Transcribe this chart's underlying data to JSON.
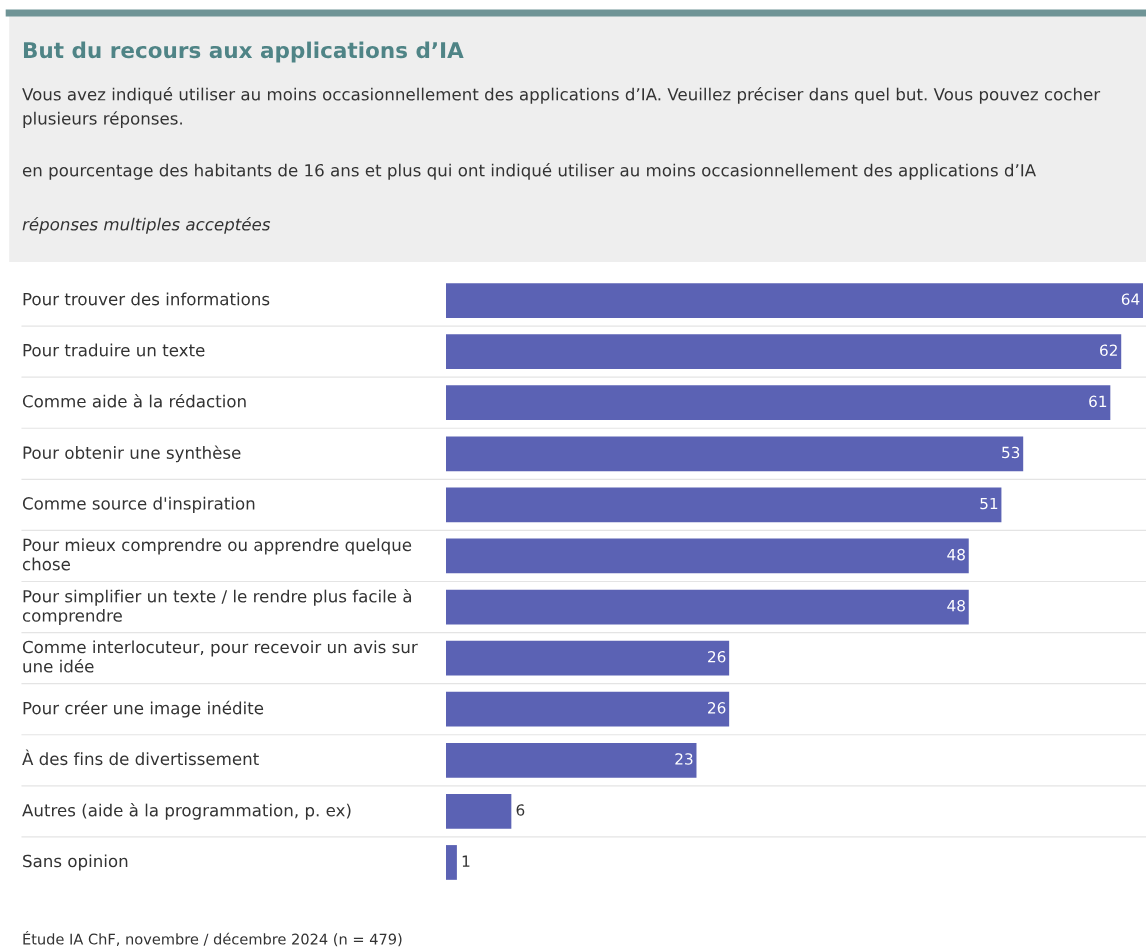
{
  "chart_data": {
    "type": "bar",
    "orientation": "horizontal",
    "title": "But du recours aux applications d’IA",
    "subtitle": "Vous avez indiqué utiliser au moins occasionnellement des applications d’IA. Veuillez préciser dans quel but. Vous pouvez cocher plusieurs réponses.",
    "annotations": [
      "en pourcentage des habitants de 16 ans et plus qui ont indiqué utiliser au moins occasionnellement des applications d’IA",
      "réponses multiples acceptées",
      "Étude IA ChF, novembre / décembre 2024 (n = 479)"
    ],
    "categories": [
      "Pour trouver des informations",
      "Pour traduire un texte",
      "Comme aide à la rédaction",
      "Pour obtenir une synthèse",
      "Comme source d'inspiration",
      "Pour mieux comprendre ou apprendre quelque chose",
      "Pour simplifier un texte / le rendre plus facile à comprendre",
      "Comme interlocuteur, pour recevoir un avis sur une idée",
      "Pour créer une image inédite",
      "À des fins de divertissement",
      "Autres (aide à la programmation, p. ex)",
      "Sans opinion"
    ],
    "values": [
      64,
      62,
      61,
      53,
      51,
      48,
      48,
      26,
      26,
      23,
      6,
      1
    ],
    "color": "#5b62b4",
    "data_labels": true
  }
}
